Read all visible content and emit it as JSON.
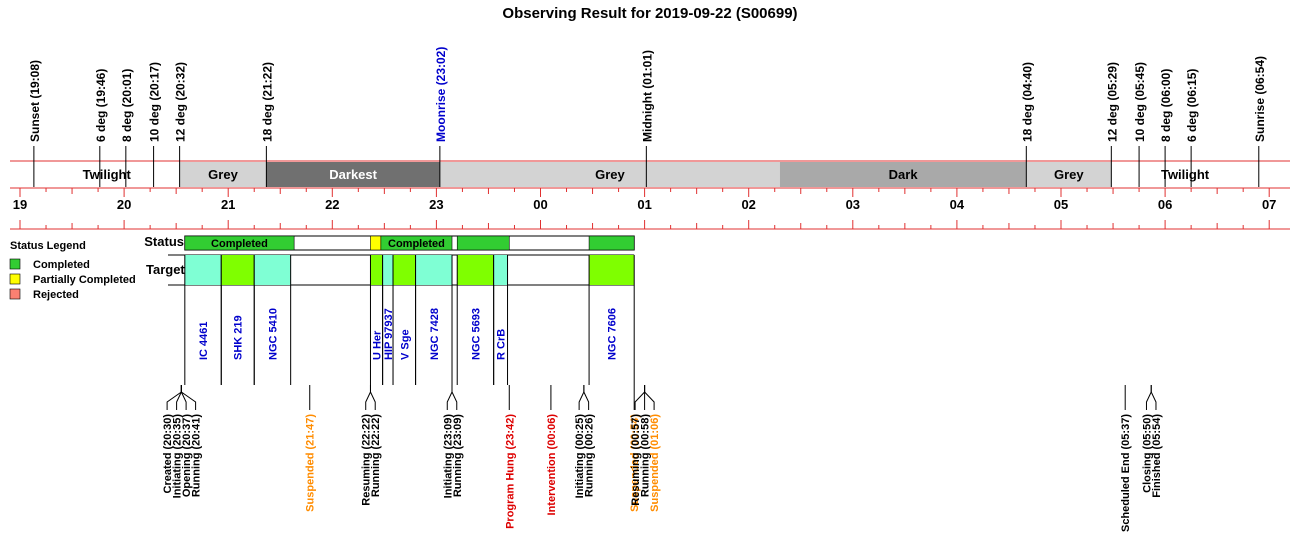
{
  "title": "Observing Result for 2019-09-22 (S00699)",
  "chart_data": {
    "type": "timeline",
    "top_events": [
      {
        "label": "Sunset (19:08)",
        "t": "19:08",
        "color": "#000000"
      },
      {
        "label": "6 deg (19:46)",
        "t": "19:46",
        "color": "#000000"
      },
      {
        "label": "8 deg (20:01)",
        "t": "20:01",
        "color": "#000000"
      },
      {
        "label": "10 deg (20:17)",
        "t": "20:17",
        "color": "#000000"
      },
      {
        "label": "12 deg (20:32)",
        "t": "20:32",
        "color": "#000000"
      },
      {
        "label": "18 deg (21:22)",
        "t": "21:22",
        "color": "#000000"
      },
      {
        "label": "Moonrise (23:02)",
        "t": "23:02",
        "color": "#0000cc"
      },
      {
        "label": "Midnight (01:01)",
        "t": "01:01",
        "color": "#000000"
      },
      {
        "label": "18 deg (04:40)",
        "t": "04:40",
        "color": "#000000"
      },
      {
        "label": "12 deg (05:29)",
        "t": "05:29",
        "color": "#000000"
      },
      {
        "label": "10 deg (05:45)",
        "t": "05:45",
        "color": "#000000"
      },
      {
        "label": "8 deg (06:00)",
        "t": "06:00",
        "color": "#000000"
      },
      {
        "label": "6 deg (06:15)",
        "t": "06:15",
        "color": "#000000"
      },
      {
        "label": "Sunrise (06:54)",
        "t": "06:54",
        "color": "#000000"
      }
    ],
    "sky_bands": [
      {
        "label": "Twilight",
        "start": "19:08",
        "end": "20:32",
        "fill": "#ffffff",
        "text": "#000000"
      },
      {
        "label": "Grey",
        "start": "20:32",
        "end": "21:22",
        "fill": "#d3d3d3",
        "text": "#000000"
      },
      {
        "label": "Darkest",
        "start": "21:22",
        "end": "23:02",
        "fill": "#707070",
        "text": "#ffffff"
      },
      {
        "label": "Grey",
        "start": "23:02",
        "end": "02:18",
        "fill": "#d3d3d3",
        "text": "#000000"
      },
      {
        "label": "Dark",
        "start": "02:18",
        "end": "04:40",
        "fill": "#a9a9a9",
        "text": "#000000"
      },
      {
        "label": "Grey",
        "start": "04:40",
        "end": "05:29",
        "fill": "#d3d3d3",
        "text": "#000000"
      },
      {
        "label": "Twilight",
        "start": "05:29",
        "end": "06:54",
        "fill": "#ffffff",
        "text": "#000000"
      }
    ],
    "hour_ticks": [
      "19",
      "20",
      "21",
      "22",
      "23",
      "00",
      "01",
      "02",
      "03",
      "04",
      "05",
      "06",
      "07"
    ],
    "status_label": "Status",
    "targets_label": "Targets",
    "status_segments": [
      {
        "start": "20:35",
        "end": "21:38",
        "status": "Completed",
        "label": "Completed"
      },
      {
        "start": "22:22",
        "end": "22:28",
        "status": "Partially Completed",
        "label": ""
      },
      {
        "start": "22:28",
        "end": "23:09",
        "status": "Completed",
        "label": "Completed"
      },
      {
        "start": "23:12",
        "end": "23:42",
        "status": "Completed",
        "label": ""
      },
      {
        "start": "00:28",
        "end": "00:54",
        "status": "Completed",
        "label": ""
      }
    ],
    "targets": [
      {
        "name": "IC 4461",
        "start": "20:35",
        "end": "20:56",
        "fill": "#7fffd4"
      },
      {
        "name": "SHK 219",
        "start": "20:56",
        "end": "21:15",
        "fill": "#7fff00"
      },
      {
        "name": "NGC 5410",
        "start": "21:15",
        "end": "21:36",
        "fill": "#7fffd4"
      },
      {
        "name": "U Her",
        "start": "22:22",
        "end": "22:29",
        "fill": "#7fff00"
      },
      {
        "name": "HIP 97937",
        "start": "22:29",
        "end": "22:35",
        "fill": "#7fffd4"
      },
      {
        "name": "V Sge",
        "start": "22:35",
        "end": "22:48",
        "fill": "#7fff00"
      },
      {
        "name": "NGC 7428",
        "start": "22:48",
        "end": "23:09",
        "fill": "#7fffd4"
      },
      {
        "name": "NGC 5693",
        "start": "23:12",
        "end": "23:33",
        "fill": "#7fff00"
      },
      {
        "name": "R CrB",
        "start": "23:33",
        "end": "23:41",
        "fill": "#7fffd4"
      },
      {
        "name": "NGC 7606",
        "start": "00:28",
        "end": "00:54",
        "fill": "#7fff00"
      }
    ],
    "legend": {
      "title": "Status Legend",
      "items": [
        {
          "label": "Completed",
          "color": "#32cd32"
        },
        {
          "label": "Partially Completed",
          "color": "#ffff00"
        },
        {
          "label": "Rejected",
          "color": "#fa8072"
        }
      ]
    },
    "bottom_groups": [
      {
        "anchor": "20:33",
        "events": [
          {
            "label": "Created (20:30)",
            "t": "20:30",
            "color": "#000000"
          },
          {
            "label": "Initiating (20:35)",
            "t": "20:35",
            "color": "#000000"
          },
          {
            "label": "Opening (20:37)",
            "t": "20:37",
            "color": "#000000"
          },
          {
            "label": "Running (20:41)",
            "t": "20:41",
            "color": "#000000"
          }
        ]
      },
      {
        "anchor": "21:47",
        "events": [
          {
            "label": "Suspended (21:47)",
            "t": "21:47",
            "color": "#ff8c00"
          }
        ]
      },
      {
        "anchor": "22:22",
        "events": [
          {
            "label": "Resuming (22:22)",
            "t": "22:22",
            "color": "#000000"
          },
          {
            "label": "Running (22:22)",
            "t": "22:22",
            "color": "#000000"
          }
        ]
      },
      {
        "anchor": "23:09",
        "events": [
          {
            "label": "Initiating (23:09)",
            "t": "23:09",
            "color": "#000000"
          },
          {
            "label": "Running (23:09)",
            "t": "23:09",
            "color": "#000000"
          }
        ]
      },
      {
        "anchor": "23:42",
        "events": [
          {
            "label": "Program Hung (23:42)",
            "t": "23:42",
            "color": "#dd0000"
          }
        ]
      },
      {
        "anchor": "00:06",
        "events": [
          {
            "label": "Intervention (00:06)",
            "t": "00:06",
            "color": "#dd0000"
          }
        ]
      },
      {
        "anchor": "00:25",
        "events": [
          {
            "label": "Initiating (00:25)",
            "t": "00:25",
            "color": "#000000"
          },
          {
            "label": "Running (00:26)",
            "t": "00:26",
            "color": "#000000"
          }
        ]
      },
      {
        "anchor": "00:54",
        "events": [
          {
            "label": "Suspended (00:54)",
            "t": "00:54",
            "color": "#ff8c00"
          }
        ]
      },
      {
        "anchor": "01:00",
        "events": [
          {
            "label": "Resuming (00:57)",
            "t": "00:57",
            "color": "#000000"
          },
          {
            "label": "Running (00:58)",
            "t": "00:58",
            "color": "#000000"
          },
          {
            "label": "Suspended (01:06)",
            "t": "01:06",
            "color": "#ff8c00"
          }
        ]
      },
      {
        "anchor": "05:37",
        "events": [
          {
            "label": "Scheduled End (05:37)",
            "t": "05:37",
            "color": "#000000"
          }
        ]
      },
      {
        "anchor": "05:52",
        "events": [
          {
            "label": "Closing (05:50)",
            "t": "05:50",
            "color": "#000000"
          },
          {
            "label": "Finished (05:54)",
            "t": "05:54",
            "color": "#000000"
          }
        ]
      }
    ]
  }
}
